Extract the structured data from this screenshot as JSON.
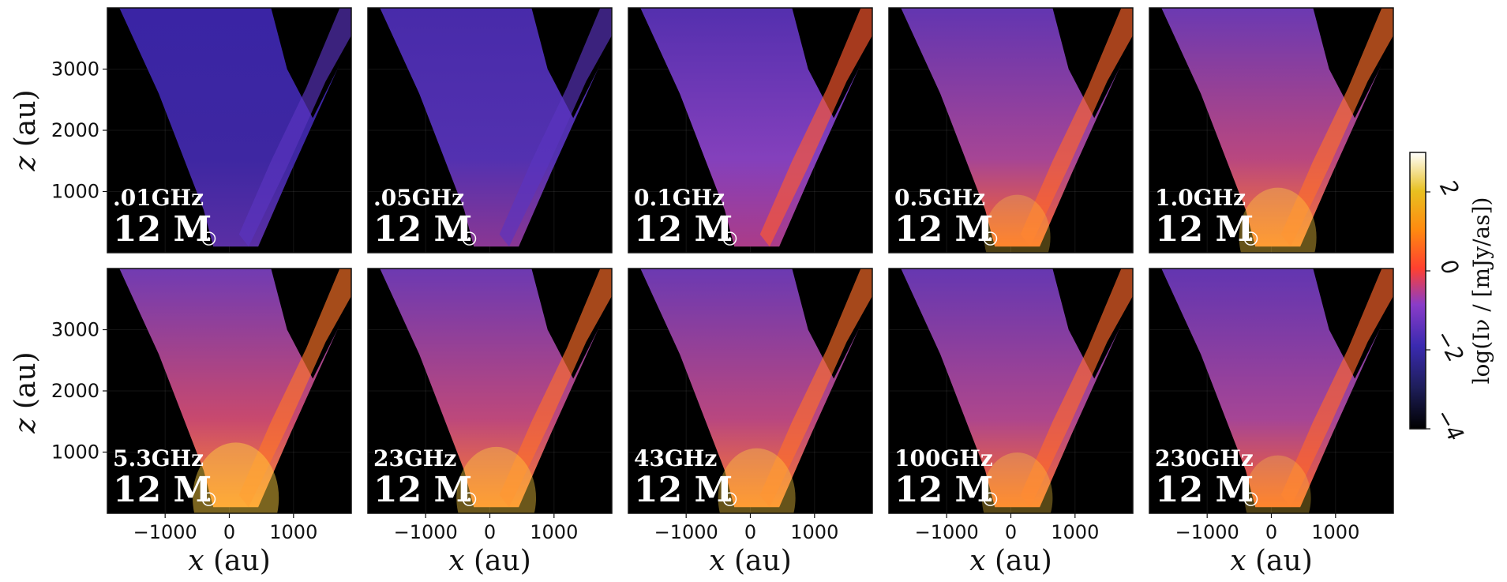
{
  "chart_data": {
    "type": "heatmap",
    "panels": [
      {
        "frequency": ".01GHz",
        "label": "12 M",
        "intensity": 0.12
      },
      {
        "frequency": ".05GHz",
        "label": "12 M",
        "intensity": 0.3
      },
      {
        "frequency": "0.1GHz",
        "label": "12 M",
        "intensity": 0.42
      },
      {
        "frequency": "0.5GHz",
        "label": "12 M",
        "intensity": 0.6
      },
      {
        "frequency": "1.0GHz",
        "label": "12 M",
        "intensity": 0.7
      },
      {
        "frequency": "5.3GHz",
        "label": "12 M",
        "intensity": 0.78
      },
      {
        "frequency": "23GHz",
        "label": "12 M",
        "intensity": 0.72
      },
      {
        "frequency": "43GHz",
        "label": "12 M",
        "intensity": 0.7
      },
      {
        "frequency": "100GHz",
        "label": "12 M",
        "intensity": 0.64
      },
      {
        "frequency": "230GHz",
        "label": "12 M",
        "intensity": 0.6
      }
    ],
    "xlabel_var": "x",
    "xlabel_unit": " (au)",
    "ylabel_var": "z",
    "ylabel_unit": " (au)",
    "xlim": [
      -1900,
      1900
    ],
    "ylim": [
      0,
      4000
    ],
    "xticks": [
      -1000,
      0,
      1000
    ],
    "xtick_labels": [
      "−1000",
      "0",
      "1000"
    ],
    "yticks": [
      1000,
      2000,
      3000
    ],
    "ytick_labels": [
      "1000",
      "2000",
      "3000"
    ],
    "colorbar": {
      "label": "log(Iν / [mJy/as])",
      "range": [
        -4,
        3
      ],
      "ticks": [
        -4,
        -2,
        0,
        2
      ],
      "tick_labels": [
        "−4",
        "−2",
        "0",
        "2"
      ],
      "colormap": "CMRmap"
    },
    "grid": true
  }
}
